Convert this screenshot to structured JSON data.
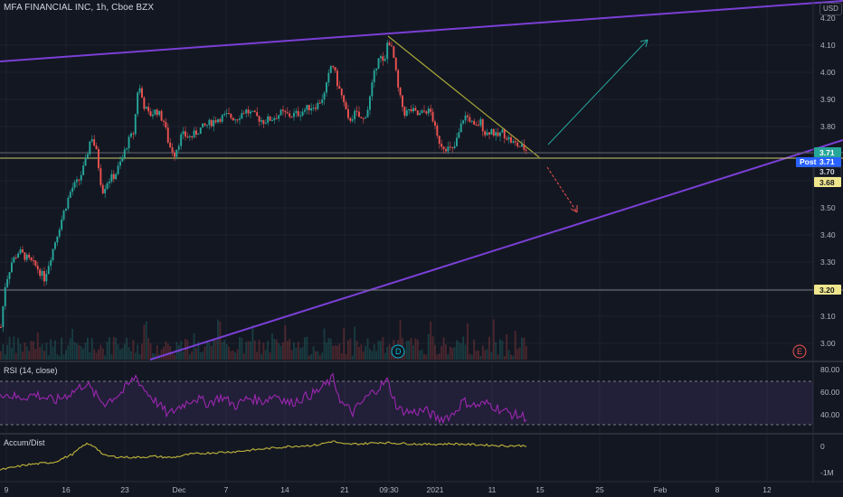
{
  "header": {
    "symbol_title": "MFA FINANCIAL INC, 1h, Cboe BZX",
    "currency": "USD"
  },
  "panes": {
    "rsi_label": "RSI (14, close)",
    "accum_label": "Accum/Dist"
  },
  "markers": {
    "dividend": "D",
    "earnings": "E"
  },
  "price_tags": {
    "current": "3.71",
    "post_label": "Post",
    "post_value": "3.71",
    "level_a": "3.70",
    "level_b": "3.68",
    "support": "3.20"
  },
  "colors": {
    "background": "#131722",
    "up": "#26a69a",
    "down": "#ef5350",
    "channel": "#7b3fd6",
    "downtrend": "#a6a637",
    "rsi": "#9c27b0",
    "accum": "#c0b53b"
  },
  "chart_data": [
    {
      "type": "candlestick",
      "title": "MFA FINANCIAL INC, 1h, Cboe BZX",
      "x_tick_labels": [
        "9",
        "16",
        "23",
        "Dec",
        "7",
        "14",
        "21",
        "09:30",
        "2021",
        "11",
        "15",
        "25",
        "Feb",
        "8",
        "12"
      ],
      "y_tick_labels": [
        "4.20",
        "4.10",
        "4.00",
        "3.90",
        "3.80",
        "3.70",
        "3.60",
        "3.50",
        "3.40",
        "3.30",
        "3.20",
        "3.10",
        "3.00"
      ],
      "ylim": [
        2.97,
        4.22
      ],
      "close_path": [
        [
          0,
          3.06
        ],
        [
          5,
          3.22
        ],
        [
          12,
          3.3
        ],
        [
          20,
          3.34
        ],
        [
          30,
          3.31
        ],
        [
          40,
          3.28
        ],
        [
          48,
          3.24
        ],
        [
          56,
          3.33
        ],
        [
          62,
          3.4
        ],
        [
          70,
          3.49
        ],
        [
          78,
          3.57
        ],
        [
          86,
          3.6
        ],
        [
          93,
          3.66
        ],
        [
          100,
          3.77
        ],
        [
          106,
          3.7
        ],
        [
          112,
          3.56
        ],
        [
          118,
          3.6
        ],
        [
          126,
          3.62
        ],
        [
          134,
          3.68
        ],
        [
          140,
          3.74
        ],
        [
          147,
          3.78
        ],
        [
          152,
          3.96
        ],
        [
          158,
          3.88
        ],
        [
          164,
          3.84
        ],
        [
          172,
          3.86
        ],
        [
          180,
          3.82
        ],
        [
          186,
          3.73
        ],
        [
          192,
          3.7
        ],
        [
          200,
          3.77
        ],
        [
          210,
          3.76
        ],
        [
          220,
          3.79
        ],
        [
          230,
          3.81
        ],
        [
          240,
          3.83
        ],
        [
          250,
          3.84
        ],
        [
          260,
          3.83
        ],
        [
          270,
          3.86
        ],
        [
          280,
          3.84
        ],
        [
          290,
          3.82
        ],
        [
          300,
          3.83
        ],
        [
          310,
          3.85
        ],
        [
          320,
          3.84
        ],
        [
          330,
          3.85
        ],
        [
          340,
          3.87
        ],
        [
          350,
          3.88
        ],
        [
          358,
          3.92
        ],
        [
          366,
          4.04
        ],
        [
          372,
          3.96
        ],
        [
          378,
          3.9
        ],
        [
          384,
          3.82
        ],
        [
          392,
          3.85
        ],
        [
          400,
          3.82
        ],
        [
          406,
          3.87
        ],
        [
          412,
          3.98
        ],
        [
          418,
          4.07
        ],
        [
          424,
          4.02
        ],
        [
          428,
          4.13
        ],
        [
          434,
          4.06
        ],
        [
          440,
          3.92
        ],
        [
          446,
          3.85
        ],
        [
          454,
          3.86
        ],
        [
          462,
          3.84
        ],
        [
          470,
          3.86
        ],
        [
          476,
          3.85
        ],
        [
          482,
          3.76
        ],
        [
          488,
          3.73
        ],
        [
          494,
          3.72
        ],
        [
          500,
          3.71
        ],
        [
          506,
          3.77
        ],
        [
          512,
          3.84
        ],
        [
          518,
          3.83
        ],
        [
          524,
          3.79
        ],
        [
          530,
          3.82
        ],
        [
          536,
          3.77
        ],
        [
          542,
          3.79
        ],
        [
          548,
          3.76
        ],
        [
          554,
          3.78
        ],
        [
          560,
          3.76
        ],
        [
          566,
          3.74
        ],
        [
          572,
          3.73
        ],
        [
          578,
          3.72
        ],
        [
          582,
          3.71
        ]
      ]
    },
    {
      "type": "line",
      "title": "RSI (14, close)",
      "y_tick_labels": [
        "80.00",
        "60.00",
        "40.00"
      ],
      "ylim": [
        25,
        85
      ],
      "band": [
        30,
        70
      ],
      "path": [
        [
          0,
          60
        ],
        [
          20,
          55
        ],
        [
          40,
          58
        ],
        [
          60,
          52
        ],
        [
          80,
          60
        ],
        [
          95,
          68
        ],
        [
          105,
          58
        ],
        [
          115,
          50
        ],
        [
          125,
          55
        ],
        [
          135,
          60
        ],
        [
          150,
          74
        ],
        [
          160,
          62
        ],
        [
          172,
          52
        ],
        [
          186,
          40
        ],
        [
          200,
          48
        ],
        [
          215,
          55
        ],
        [
          230,
          50
        ],
        [
          245,
          56
        ],
        [
          260,
          48
        ],
        [
          275,
          55
        ],
        [
          290,
          52
        ],
        [
          305,
          58
        ],
        [
          320,
          50
        ],
        [
          335,
          55
        ],
        [
          350,
          60
        ],
        [
          368,
          72
        ],
        [
          378,
          50
        ],
        [
          390,
          42
        ],
        [
          405,
          55
        ],
        [
          418,
          64
        ],
        [
          428,
          70
        ],
        [
          440,
          45
        ],
        [
          455,
          42
        ],
        [
          470,
          44
        ],
        [
          485,
          36
        ],
        [
          500,
          40
        ],
        [
          512,
          52
        ],
        [
          525,
          48
        ],
        [
          540,
          50
        ],
        [
          555,
          44
        ],
        [
          568,
          40
        ],
        [
          582,
          38
        ]
      ]
    },
    {
      "type": "line",
      "title": "Accum/Dist",
      "y_tick_labels": [
        "0",
        "-1M"
      ],
      "ylim": [
        -1200000,
        400000
      ],
      "path": [
        [
          0,
          -900000
        ],
        [
          30,
          -700000
        ],
        [
          60,
          -600000
        ],
        [
          80,
          -300000
        ],
        [
          95,
          100000
        ],
        [
          105,
          0
        ],
        [
          115,
          -350000
        ],
        [
          130,
          -400000
        ],
        [
          150,
          -420000
        ],
        [
          170,
          -380000
        ],
        [
          190,
          -430000
        ],
        [
          210,
          -300000
        ],
        [
          230,
          -250000
        ],
        [
          260,
          -200000
        ],
        [
          290,
          -100000
        ],
        [
          320,
          0
        ],
        [
          350,
          50000
        ],
        [
          368,
          200000
        ],
        [
          380,
          80000
        ],
        [
          400,
          100000
        ],
        [
          420,
          150000
        ],
        [
          440,
          120000
        ],
        [
          470,
          80000
        ],
        [
          500,
          100000
        ],
        [
          530,
          60000
        ],
        [
          560,
          20000
        ],
        [
          582,
          30000
        ]
      ]
    }
  ]
}
